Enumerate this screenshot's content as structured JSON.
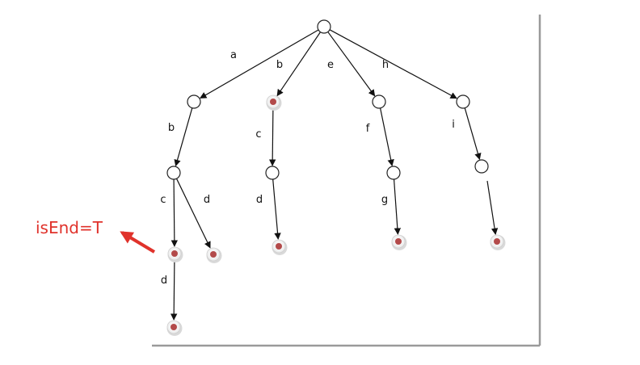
{
  "colors": {
    "edge": "#111111",
    "node_stroke": "#222222",
    "end_fill": "#b34a4a",
    "annotation": "#e0322b",
    "frame_shadow": "#9a9a9a"
  },
  "annotation": {
    "label": "isEnd=T"
  },
  "trie": {
    "nodes": [
      {
        "id": "root",
        "is_end": false
      },
      {
        "id": "a",
        "is_end": false
      },
      {
        "id": "b",
        "is_end": true
      },
      {
        "id": "e",
        "is_end": false
      },
      {
        "id": "h",
        "is_end": false
      },
      {
        "id": "ab",
        "is_end": false
      },
      {
        "id": "bc",
        "is_end": false
      },
      {
        "id": "ef",
        "is_end": false
      },
      {
        "id": "hi",
        "is_end": false
      },
      {
        "id": "abc",
        "is_end": true
      },
      {
        "id": "abd",
        "is_end": true
      },
      {
        "id": "bcd",
        "is_end": true
      },
      {
        "id": "efg",
        "is_end": true
      },
      {
        "id": "hi_end",
        "is_end": true
      },
      {
        "id": "abcd",
        "is_end": true
      }
    ],
    "edges": [
      {
        "from": "root",
        "to": "a",
        "label": "a"
      },
      {
        "from": "root",
        "to": "b",
        "label": "b"
      },
      {
        "from": "root",
        "to": "e",
        "label": "e"
      },
      {
        "from": "root",
        "to": "h",
        "label": "h"
      },
      {
        "from": "a",
        "to": "ab",
        "label": "b"
      },
      {
        "from": "b",
        "to": "bc",
        "label": "c"
      },
      {
        "from": "e",
        "to": "ef",
        "label": "f"
      },
      {
        "from": "h",
        "to": "hi",
        "label": "i"
      },
      {
        "from": "ab",
        "to": "abc",
        "label": "c"
      },
      {
        "from": "ab",
        "to": "abd",
        "label": "d"
      },
      {
        "from": "bc",
        "to": "bcd",
        "label": "d"
      },
      {
        "from": "ef",
        "to": "efg",
        "label": "g"
      },
      {
        "from": "hi",
        "to": "hi_end",
        "label": ""
      },
      {
        "from": "abc",
        "to": "abcd",
        "label": "d"
      }
    ]
  }
}
